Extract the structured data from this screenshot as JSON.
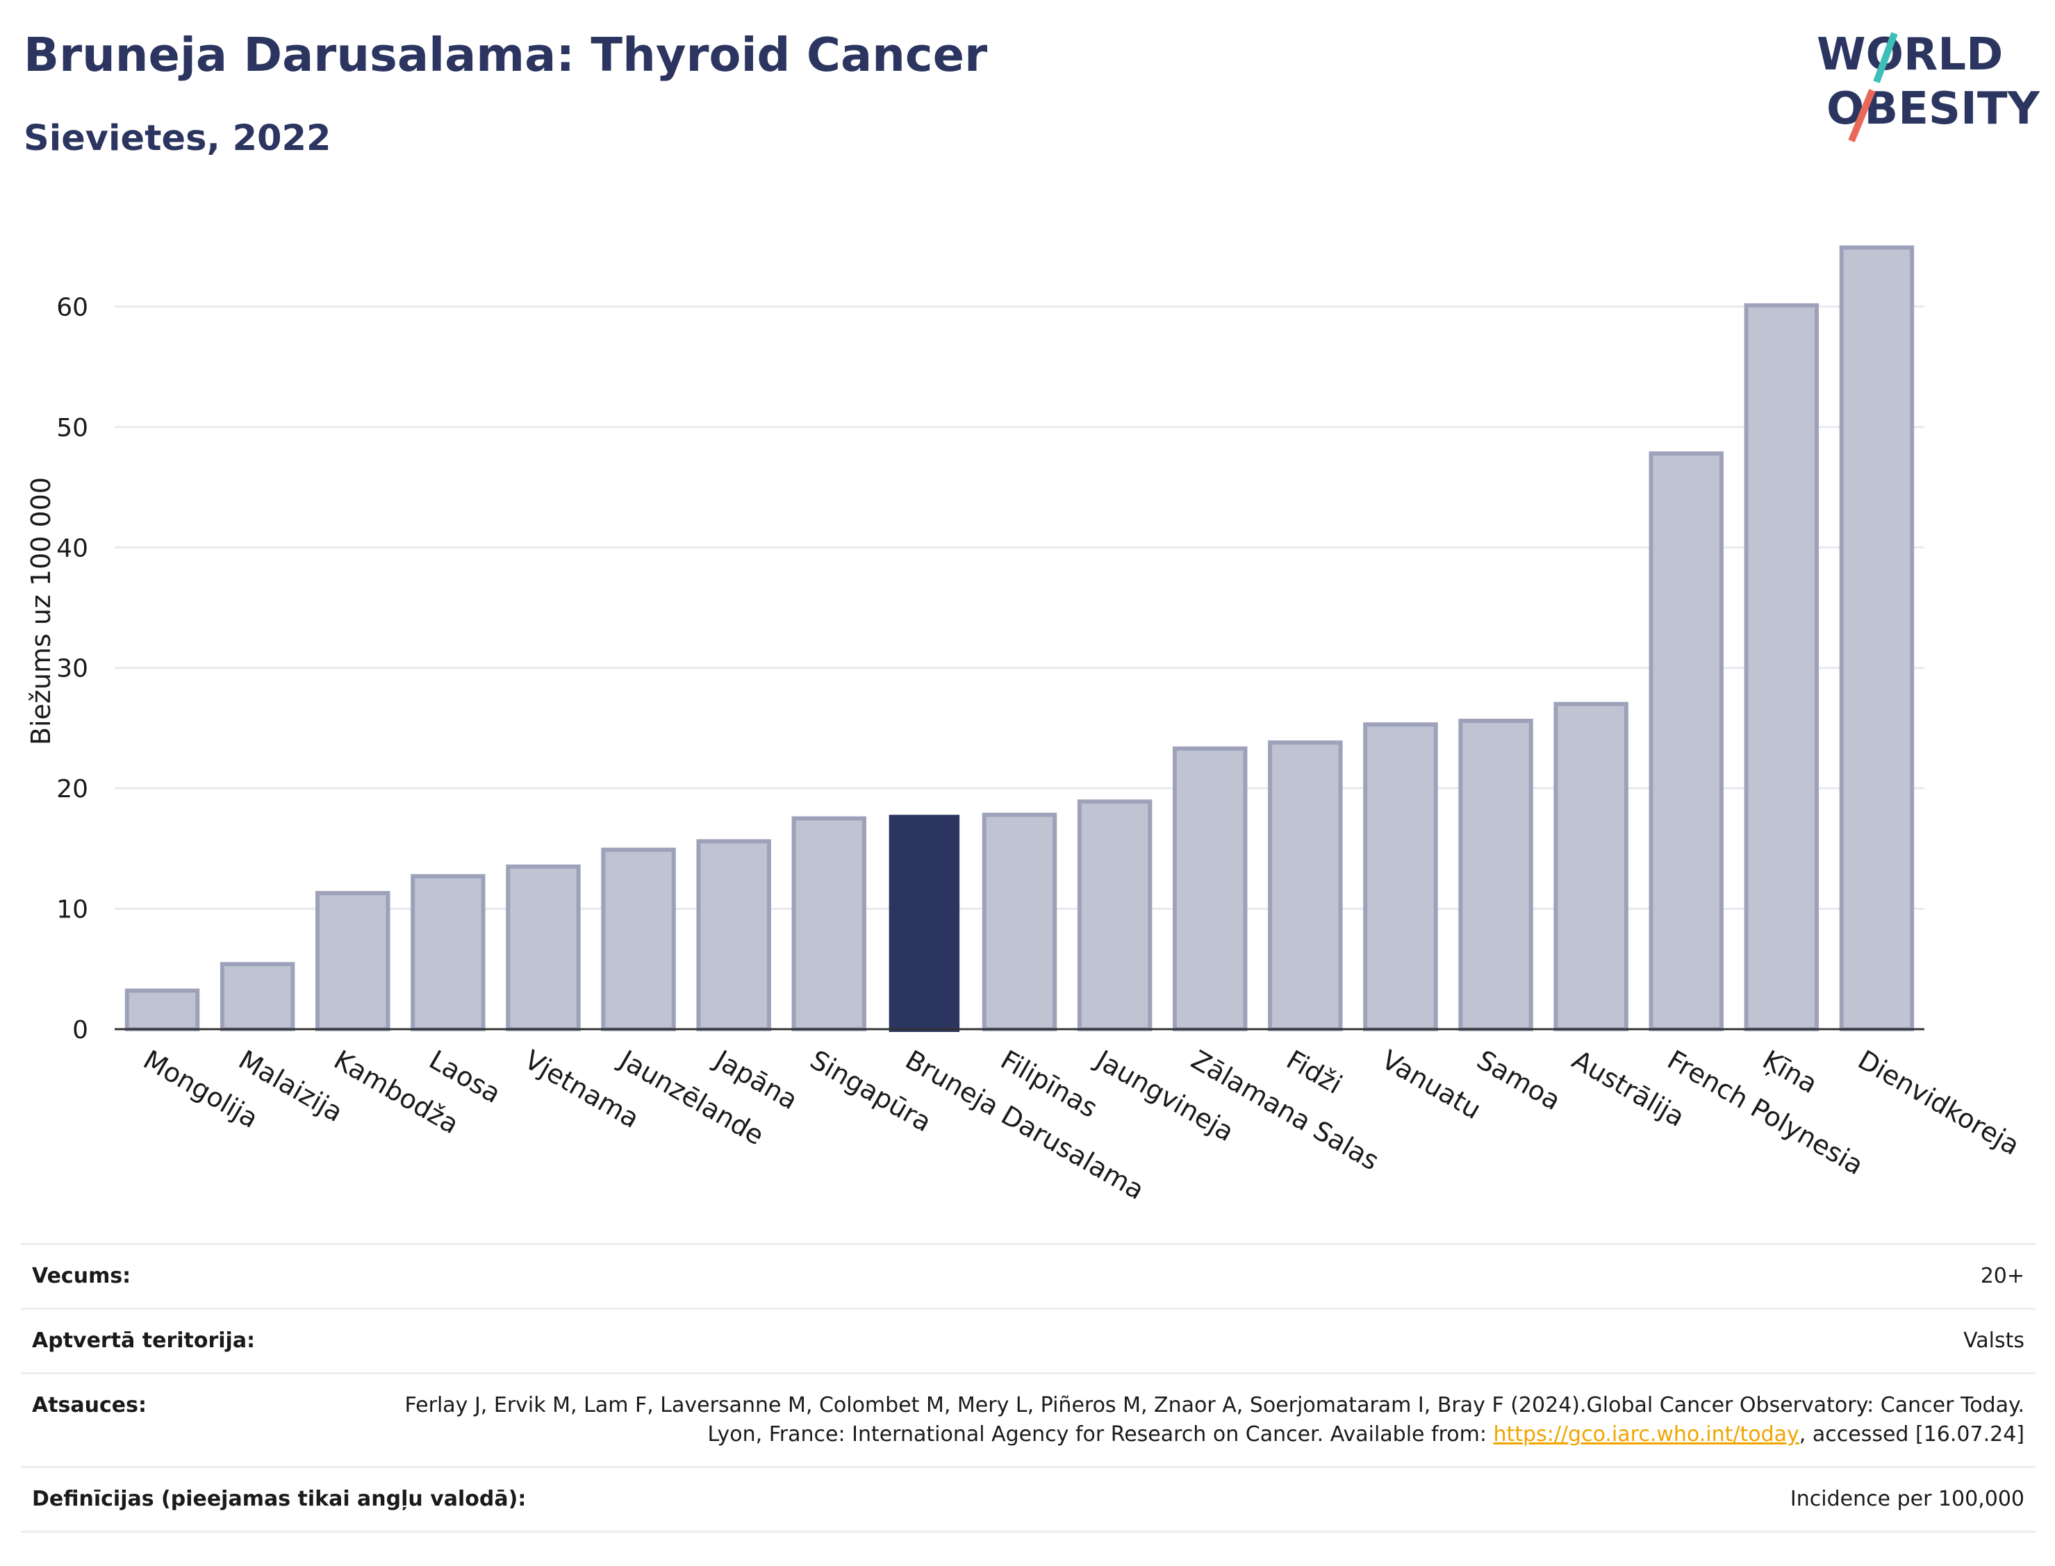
{
  "header": {
    "title": "Bruneja Darusalama: Thyroid Cancer",
    "subtitle": "Sievietes, 2022"
  },
  "logo": {
    "line1": "WORLD",
    "line2": "OBESITY",
    "accent_teal": "#3dbfb8",
    "accent_coral": "#e8685a",
    "text_color": "#2b3560"
  },
  "chart_data": {
    "type": "bar",
    "ylabel": "Biežums uz 100 000",
    "xlabel": "",
    "ylim": [
      0,
      67
    ],
    "yticks": [
      0,
      10,
      20,
      30,
      40,
      50,
      60
    ],
    "grid": true,
    "categories": [
      "Mongolija",
      "Malaizija",
      "Kambodža",
      "Laosa",
      "Vjetnama",
      "Jaunzēlande",
      "Japāna",
      "Singapūra",
      "Bruneja Darusalama",
      "Filipīnas",
      "Jaungvineja",
      "Zālamana Salas",
      "Fidži",
      "Vanuatu",
      "Samoa",
      "Austrālija",
      "French Polynesia",
      "Ķīna",
      "Dienvidkoreja"
    ],
    "values": [
      3.2,
      5.4,
      11.3,
      12.7,
      13.5,
      14.9,
      15.6,
      17.5,
      17.8,
      17.8,
      18.9,
      23.3,
      23.8,
      25.3,
      25.6,
      27.0,
      47.8,
      60.1,
      64.9
    ],
    "highlight": "Bruneja Darusalama",
    "colors": {
      "bar": "#c0c3d1",
      "bar_edge": "#9da2ba",
      "highlight": "#2b3560",
      "grid": "#e8e9ee",
      "axis": "#333333"
    }
  },
  "meta": {
    "rows": [
      {
        "key": "Vecums:",
        "value": "20+"
      },
      {
        "key": "Aptvertā teritorija:",
        "value": "Valsts"
      },
      {
        "key": "Atsauces:",
        "value_before": "Ferlay J, Ervik M, Lam F, Laversanne M, Colombet M, Mery L, Piñeros M, Znaor A, Soerjomataram I, Bray F (2024).Global Cancer Observatory: Cancer Today. Lyon, France: International Agency for Research on Cancer. Available from: ",
        "link": "https://gco.iarc.who.int/today",
        "value_after": ", accessed [16.07.24]"
      },
      {
        "key": "Definīcijas (pieejamas tikai angļu valodā):",
        "value": "Incidence per 100,000"
      }
    ]
  }
}
